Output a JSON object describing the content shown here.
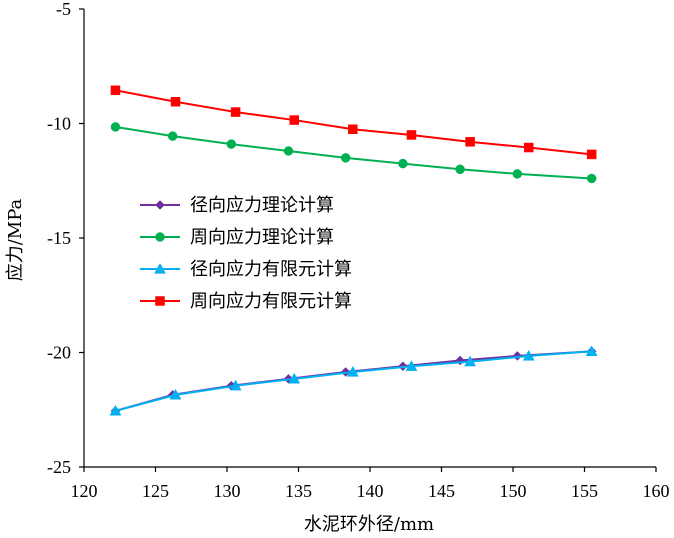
{
  "chart_data": {
    "type": "line",
    "title": "",
    "xlabel": "水泥环外径/mm",
    "ylabel": "应力/MPa",
    "xlim": [
      120,
      160
    ],
    "ylim": [
      -25,
      -5
    ],
    "xticks": [
      120,
      125,
      130,
      135,
      140,
      145,
      150,
      155,
      160
    ],
    "yticks": [
      -5,
      -10,
      -15,
      -20,
      -25
    ],
    "x_axis_position": "top",
    "grid": false,
    "legend_position": "center-left",
    "series": [
      {
        "name": "径向应力理论计算",
        "color": "#7030A0",
        "marker": "diamond",
        "points": [
          [
            122.2,
            -22.55
          ],
          [
            126.2,
            -21.85
          ],
          [
            130.3,
            -21.45
          ],
          [
            134.3,
            -21.15
          ],
          [
            138.3,
            -20.85
          ],
          [
            142.3,
            -20.6
          ],
          [
            146.3,
            -20.35
          ],
          [
            150.3,
            -20.15
          ],
          [
            155.5,
            -19.95
          ]
        ]
      },
      {
        "name": "周向应力理论计算",
        "color": "#00B050",
        "marker": "circle",
        "points": [
          [
            122.2,
            -10.15
          ],
          [
            126.2,
            -10.55
          ],
          [
            130.3,
            -10.9
          ],
          [
            134.3,
            -11.2
          ],
          [
            138.3,
            -11.5
          ],
          [
            142.3,
            -11.75
          ],
          [
            146.3,
            -12.0
          ],
          [
            150.3,
            -12.2
          ],
          [
            155.5,
            -12.4
          ]
        ]
      },
      {
        "name": "径向应力有限元计算",
        "color": "#00B0F0",
        "marker": "triangle",
        "points": [
          [
            122.2,
            -22.55
          ],
          [
            126.4,
            -21.85
          ],
          [
            130.6,
            -21.45
          ],
          [
            134.7,
            -21.15
          ],
          [
            138.8,
            -20.85
          ],
          [
            142.9,
            -20.6
          ],
          [
            147.0,
            -20.4
          ],
          [
            151.1,
            -20.15
          ],
          [
            155.5,
            -19.95
          ]
        ]
      },
      {
        "name": "周向应力有限元计算",
        "color": "#FF0000",
        "marker": "square",
        "points": [
          [
            122.2,
            -8.55
          ],
          [
            126.4,
            -9.05
          ],
          [
            130.6,
            -9.5
          ],
          [
            134.7,
            -9.85
          ],
          [
            138.8,
            -10.25
          ],
          [
            142.9,
            -10.5
          ],
          [
            147.0,
            -10.8
          ],
          [
            151.1,
            -11.05
          ],
          [
            155.5,
            -11.35
          ]
        ]
      }
    ]
  }
}
